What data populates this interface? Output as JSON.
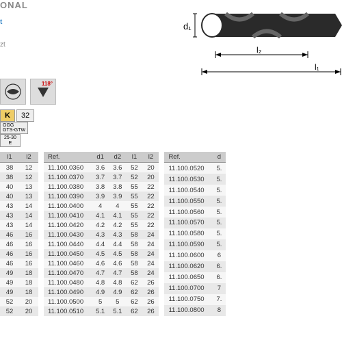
{
  "header": {
    "title": "ONAL",
    "sub1": "t",
    "sub2": "zt"
  },
  "icons": {
    "angle_label": "118°"
  },
  "badges": {
    "k": "K",
    "kn": "32",
    "ggg_line1": "GGG",
    "ggg_line2": "GTS-GTW",
    "e_line1": "25-30",
    "e_line2": "E"
  },
  "diagram": {
    "d1": "d₁",
    "l1": "l₁",
    "l2": "l₂",
    "drill_color": "#2a2a2a",
    "line_color": "#000000"
  },
  "table1": {
    "headers": [
      "l1",
      "l2"
    ],
    "rows": [
      [
        "38",
        "12"
      ],
      [
        "38",
        "12"
      ],
      [
        "40",
        "13"
      ],
      [
        "40",
        "13"
      ],
      [
        "43",
        "14"
      ],
      [
        "43",
        "14"
      ],
      [
        "43",
        "14"
      ],
      [
        "46",
        "16"
      ],
      [
        "46",
        "16"
      ],
      [
        "46",
        "16"
      ],
      [
        "46",
        "16"
      ],
      [
        "49",
        "18"
      ],
      [
        "49",
        "18"
      ],
      [
        "49",
        "18"
      ],
      [
        "52",
        "20"
      ],
      [
        "52",
        "20"
      ]
    ]
  },
  "table2": {
    "headers": [
      "Ref.",
      "d1",
      "d2",
      "l1",
      "l2"
    ],
    "rows": [
      [
        "11.100.0360",
        "3.6",
        "3.6",
        "52",
        "20"
      ],
      [
        "11.100.0370",
        "3.7",
        "3.7",
        "52",
        "20"
      ],
      [
        "11.100.0380",
        "3.8",
        "3.8",
        "55",
        "22"
      ],
      [
        "11.100.0390",
        "3.9",
        "3.9",
        "55",
        "22"
      ],
      [
        "11.100.0400",
        "4",
        "4",
        "55",
        "22"
      ],
      [
        "11.100.0410",
        "4.1",
        "4.1",
        "55",
        "22"
      ],
      [
        "11.100.0420",
        "4.2",
        "4.2",
        "55",
        "22"
      ],
      [
        "11.100.0430",
        "4.3",
        "4.3",
        "58",
        "24"
      ],
      [
        "11.100.0440",
        "4.4",
        "4.4",
        "58",
        "24"
      ],
      [
        "11.100.0450",
        "4.5",
        "4.5",
        "58",
        "24"
      ],
      [
        "11.100.0460",
        "4.6",
        "4.6",
        "58",
        "24"
      ],
      [
        "11.100.0470",
        "4.7",
        "4.7",
        "58",
        "24"
      ],
      [
        "11.100.0480",
        "4.8",
        "4.8",
        "62",
        "26"
      ],
      [
        "11.100.0490",
        "4.9",
        "4.9",
        "62",
        "26"
      ],
      [
        "11.100.0500",
        "5",
        "5",
        "62",
        "26"
      ],
      [
        "11.100.0510",
        "5.1",
        "5.1",
        "62",
        "26"
      ]
    ]
  },
  "table3": {
    "headers": [
      "Ref.",
      "d"
    ],
    "rows": [
      [
        "11.100.0520",
        "5."
      ],
      [
        "11.100.0530",
        "5."
      ],
      [
        "11.100.0540",
        "5."
      ],
      [
        "11.100.0550",
        "5."
      ],
      [
        "11.100.0560",
        "5."
      ],
      [
        "11.100.0570",
        "5."
      ],
      [
        "11.100.0580",
        "5."
      ],
      [
        "11.100.0590",
        "5."
      ],
      [
        "11.100.0600",
        "6"
      ],
      [
        "11.100.0620",
        "6."
      ],
      [
        "11.100.0650",
        "6."
      ],
      [
        "11.100.0700",
        "7"
      ],
      [
        "11.100.0750",
        "7."
      ],
      [
        "11.100.0800",
        "8"
      ]
    ]
  },
  "colors": {
    "header_bg": "#cccccc",
    "row_even": "#e8e8e8",
    "row_odd": "#f6f6f6",
    "badge_k_bg": "#eecc66"
  }
}
